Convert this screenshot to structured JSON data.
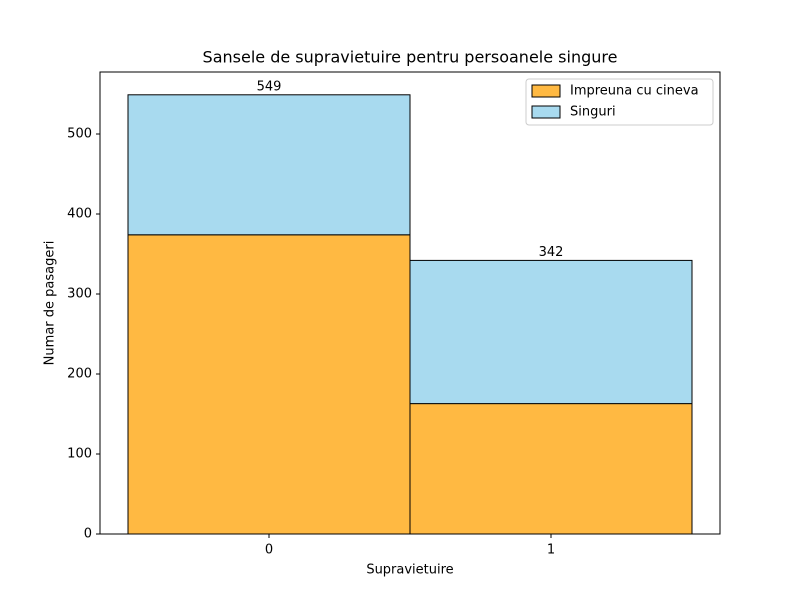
{
  "chart_data": {
    "type": "stacked_bar",
    "title": "Sansele de supravietuire pentru persoanele singure",
    "x_label": "Supravietuire",
    "y_label": "Numar de pasageri",
    "categories": [
      "0",
      "1"
    ],
    "series": [
      {
        "name": "Impreuna cu cineva",
        "color": "#ffb942",
        "values": [
          374,
          163
        ]
      },
      {
        "name": "Singuri",
        "color": "#a8daef",
        "values": [
          175,
          179
        ]
      }
    ],
    "totals": [
      549,
      342
    ],
    "ylim": [
      0,
      577.5
    ],
    "yticks": [
      0,
      100,
      200,
      300,
      400,
      500
    ],
    "legend": "upper right"
  }
}
